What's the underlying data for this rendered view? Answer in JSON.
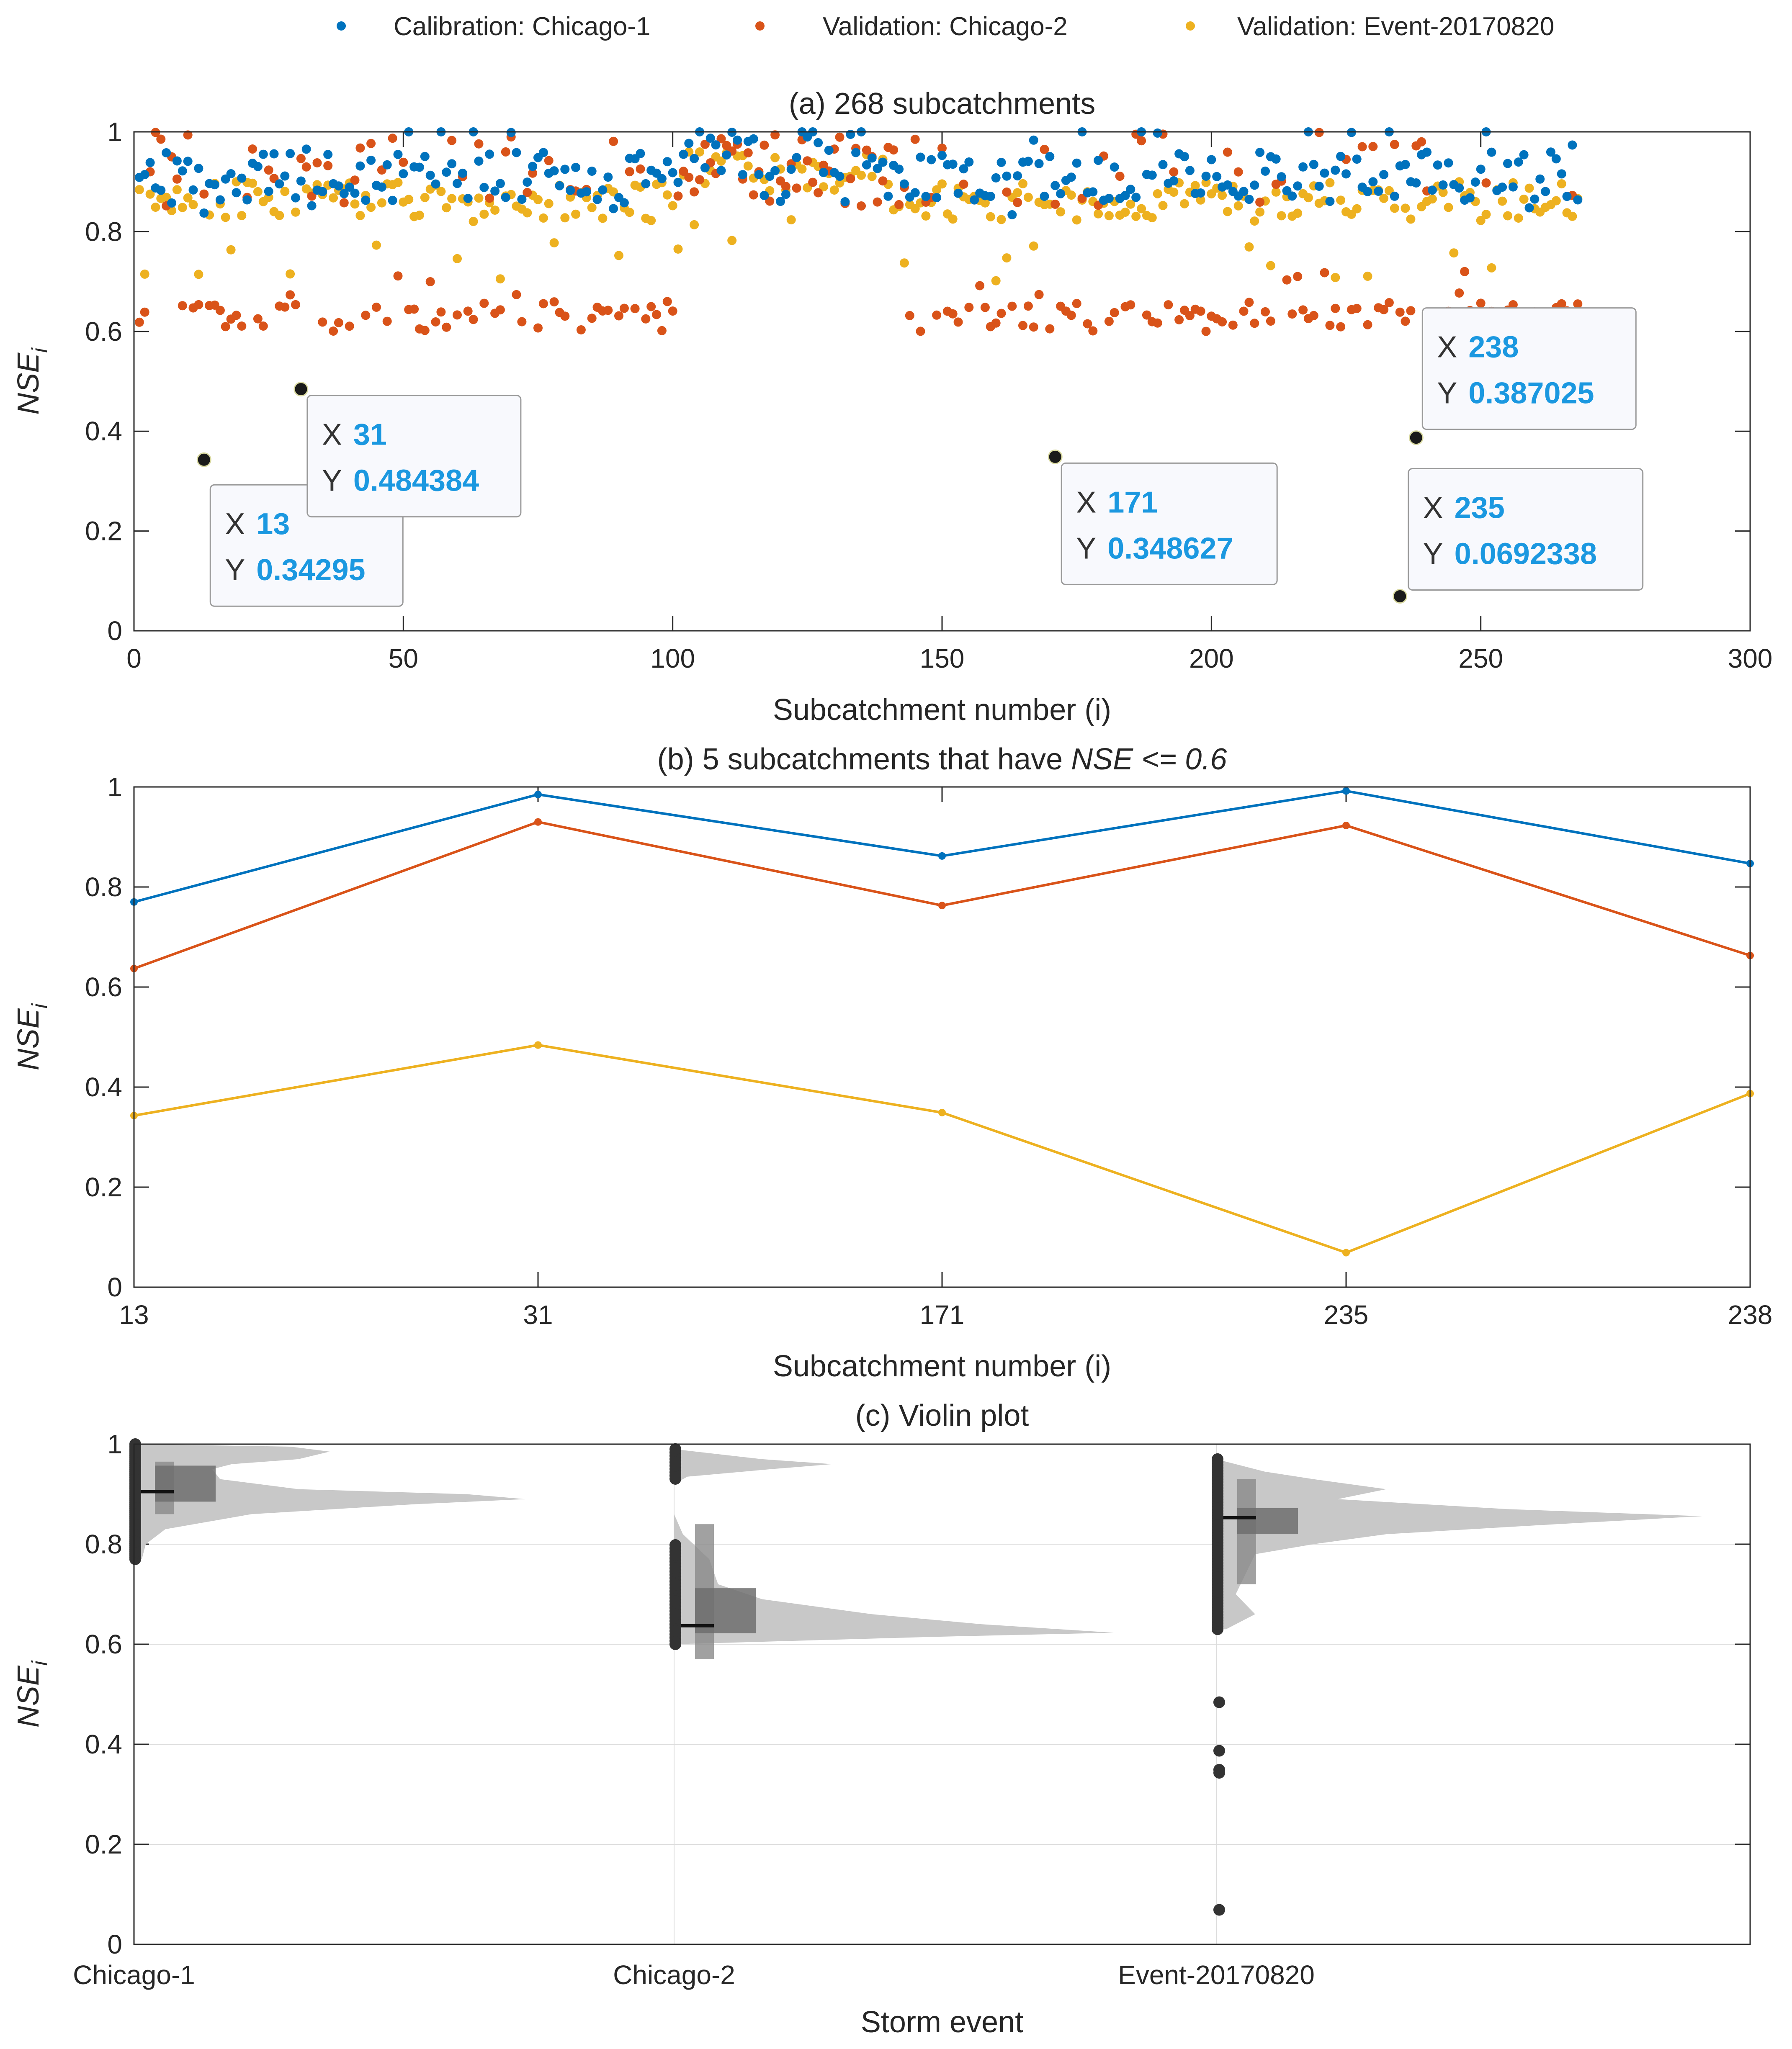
{
  "legend": [
    {
      "label": "Calibration: Chicago-1",
      "color": "#0072bd"
    },
    {
      "label": "Validation: Chicago-2",
      "color": "#d95319"
    },
    {
      "label": "Validation: Event-20170820",
      "color": "#edb120"
    }
  ],
  "chart_data": [
    {
      "type": "scatter",
      "title": "(a) 268 subcatchments",
      "xlabel": "Subcatchment number (i)",
      "ylabel": "NSE",
      "ylabel_sub": "i",
      "xlim": [
        0,
        300
      ],
      "ylim": [
        0,
        1
      ],
      "xticks": [
        0,
        50,
        100,
        150,
        200,
        250,
        300
      ],
      "yticks": [
        0,
        0.2,
        0.4,
        0.6,
        0.8,
        1
      ],
      "n_points": 268,
      "series": [
        {
          "name": "Calibration: Chicago-1",
          "color": "#0072bd",
          "range": [
            0.78,
            1.0
          ],
          "typical": 0.9
        },
        {
          "name": "Validation: Chicago-2",
          "color": "#d95319",
          "range": [
            0.6,
            1.0
          ],
          "typical": 0.63
        },
        {
          "name": "Validation: Event-20170820",
          "color": "#edb120",
          "range": [
            0.63,
            0.97
          ],
          "typical": 0.86
        }
      ],
      "outliers": [
        {
          "x": 13,
          "y": 0.34295
        },
        {
          "x": 31,
          "y": 0.484384
        },
        {
          "x": 171,
          "y": 0.348627
        },
        {
          "x": 235,
          "y": 0.0692338
        },
        {
          "x": 238,
          "y": 0.387025
        }
      ],
      "datatips": [
        {
          "x_label": "X",
          "y_label": "Y",
          "x": "13",
          "y": "0.34295"
        },
        {
          "x_label": "X",
          "y_label": "Y",
          "x": "31",
          "y": "0.484384"
        },
        {
          "x_label": "X",
          "y_label": "Y",
          "x": "171",
          "y": "0.348627"
        },
        {
          "x_label": "X",
          "y_label": "Y",
          "x": "235",
          "y": "0.0692338"
        },
        {
          "x_label": "X",
          "y_label": "Y",
          "x": "238",
          "y": "0.387025"
        }
      ]
    },
    {
      "type": "line",
      "title_prefix": "(b) 5 subcatchments that have ",
      "title_italic": "NSE <= 0.6",
      "xlabel": "Subcatchment number (i)",
      "ylabel": "NSE",
      "ylabel_sub": "i",
      "ylim": [
        0,
        1
      ],
      "yticks": [
        0,
        0.2,
        0.4,
        0.6,
        0.8,
        1
      ],
      "categories": [
        "13",
        "31",
        "171",
        "235",
        "238"
      ],
      "series": [
        {
          "name": "Calibration: Chicago-1",
          "color": "#0072bd",
          "values": [
            0.77,
            0.985,
            0.862,
            0.992,
            0.847
          ]
        },
        {
          "name": "Validation: Chicago-2",
          "color": "#d95319",
          "values": [
            0.637,
            0.93,
            0.763,
            0.923,
            0.663
          ]
        },
        {
          "name": "Validation: Event-20170820",
          "color": "#edb120",
          "values": [
            0.343,
            0.484,
            0.349,
            0.069,
            0.387
          ]
        }
      ]
    },
    {
      "type": "violin",
      "title": "(c) Violin plot",
      "xlabel": "Storm event",
      "ylabel": "NSE",
      "ylabel_sub": "i",
      "ylim": [
        0,
        1
      ],
      "yticks": [
        0,
        0.2,
        0.4,
        0.6,
        0.8,
        1
      ],
      "grid": true,
      "categories": [
        "Chicago-1",
        "Chicago-2",
        "Event-20170820"
      ],
      "groups": [
        {
          "name": "Chicago-1",
          "mean": 0.915,
          "median": 0.905,
          "q1": 0.885,
          "q3": 0.957,
          "box_lo": 0.86,
          "box_hi": 0.965,
          "min": 0.77,
          "max": 1.0,
          "density": [
            [
              0.77,
              0.02
            ],
            [
              0.8,
              0.03
            ],
            [
              0.83,
              0.08
            ],
            [
              0.86,
              0.3
            ],
            [
              0.88,
              0.72
            ],
            [
              0.89,
              1.0
            ],
            [
              0.9,
              0.85
            ],
            [
              0.91,
              0.42
            ],
            [
              0.93,
              0.22
            ],
            [
              0.95,
              0.2
            ],
            [
              0.96,
              0.25
            ],
            [
              0.97,
              0.42
            ],
            [
              0.985,
              0.5
            ],
            [
              0.995,
              0.4
            ],
            [
              1.0,
              0.0
            ]
          ]
        },
        {
          "name": "Chicago-2",
          "mean": 0.71,
          "median": 0.637,
          "q1": 0.622,
          "q3": 0.712,
          "box_lo": 0.57,
          "box_hi": 0.84,
          "min": 0.6,
          "max": 0.99,
          "density": [
            [
              0.6,
              0.0
            ],
            [
              0.615,
              0.6
            ],
            [
              0.623,
              1.0
            ],
            [
              0.64,
              0.7
            ],
            [
              0.66,
              0.45
            ],
            [
              0.69,
              0.2
            ],
            [
              0.72,
              0.1
            ],
            [
              0.77,
              0.08
            ],
            [
              0.82,
              0.02
            ],
            [
              0.86,
              0.0
            ],
            [
              0.92,
              0.0
            ],
            [
              0.935,
              0.03
            ],
            [
              0.95,
              0.22
            ],
            [
              0.96,
              0.36
            ],
            [
              0.97,
              0.2
            ],
            [
              0.99,
              0.0
            ]
          ]
        },
        {
          "name": "Event-20170820",
          "mean": 0.835,
          "median": 0.853,
          "q1": 0.82,
          "q3": 0.872,
          "box_lo": 0.72,
          "box_hi": 0.93,
          "min": 0.069,
          "max": 0.97,
          "density": [
            [
              0.63,
              0.02
            ],
            [
              0.66,
              0.08
            ],
            [
              0.7,
              0.04
            ],
            [
              0.74,
              0.06
            ],
            [
              0.78,
              0.08
            ],
            [
              0.8,
              0.2
            ],
            [
              0.82,
              0.35
            ],
            [
              0.84,
              0.7
            ],
            [
              0.856,
              1.0
            ],
            [
              0.87,
              0.6
            ],
            [
              0.89,
              0.25
            ],
            [
              0.91,
              0.35
            ],
            [
              0.93,
              0.2
            ],
            [
              0.945,
              0.1
            ],
            [
              0.97,
              0.0
            ]
          ]
        }
      ],
      "outliers": [
        0.484,
        0.387,
        0.349,
        0.343,
        0.069
      ]
    }
  ]
}
